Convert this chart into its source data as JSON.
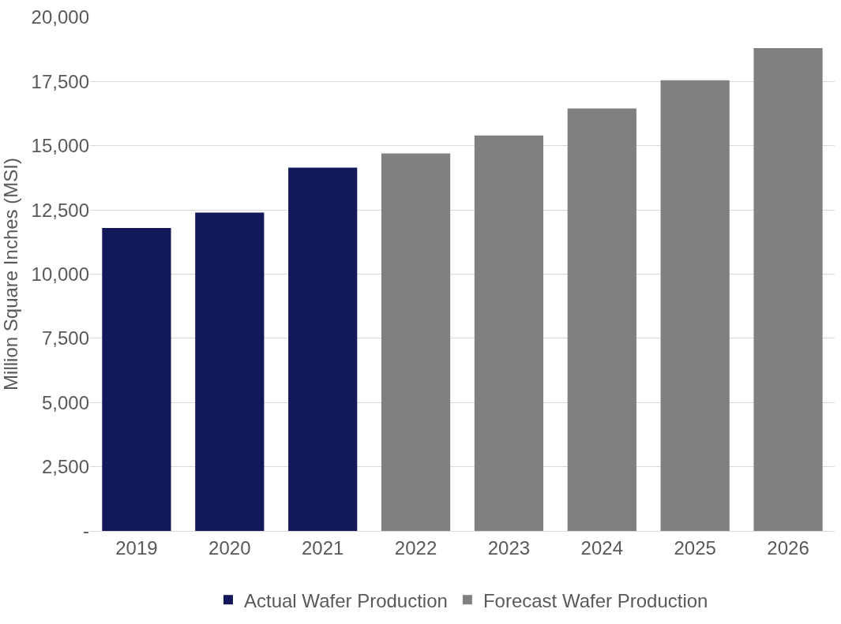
{
  "chart_data": {
    "type": "bar",
    "ylabel": "Million Square Inches (MSI)",
    "categories": [
      "2019",
      "2020",
      "2021",
      "2022",
      "2023",
      "2024",
      "2025",
      "2026"
    ],
    "series": [
      {
        "name": "Actual Wafer Production",
        "color": "#13185a",
        "values": [
          11800,
          12400,
          14150,
          null,
          null,
          null,
          null,
          null
        ]
      },
      {
        "name": "Forecast Wafer Production",
        "color": "#808083",
        "values": [
          null,
          null,
          null,
          14700,
          15400,
          16450,
          17550,
          18800
        ]
      }
    ],
    "stacked": true,
    "ylim": [
      0,
      20000
    ],
    "yticks": [
      {
        "value": 0,
        "label": "-"
      },
      {
        "value": 2500,
        "label": "2,500"
      },
      {
        "value": 5000,
        "label": "5,000"
      },
      {
        "value": 7500,
        "label": "7,500"
      },
      {
        "value": 10000,
        "label": "10,000"
      },
      {
        "value": 12500,
        "label": "12,500"
      },
      {
        "value": 15000,
        "label": "15,000"
      },
      {
        "value": 17500,
        "label": "17,500"
      },
      {
        "value": 20000,
        "label": "20,000"
      }
    ],
    "grid": "y",
    "legend": "bottom"
  }
}
